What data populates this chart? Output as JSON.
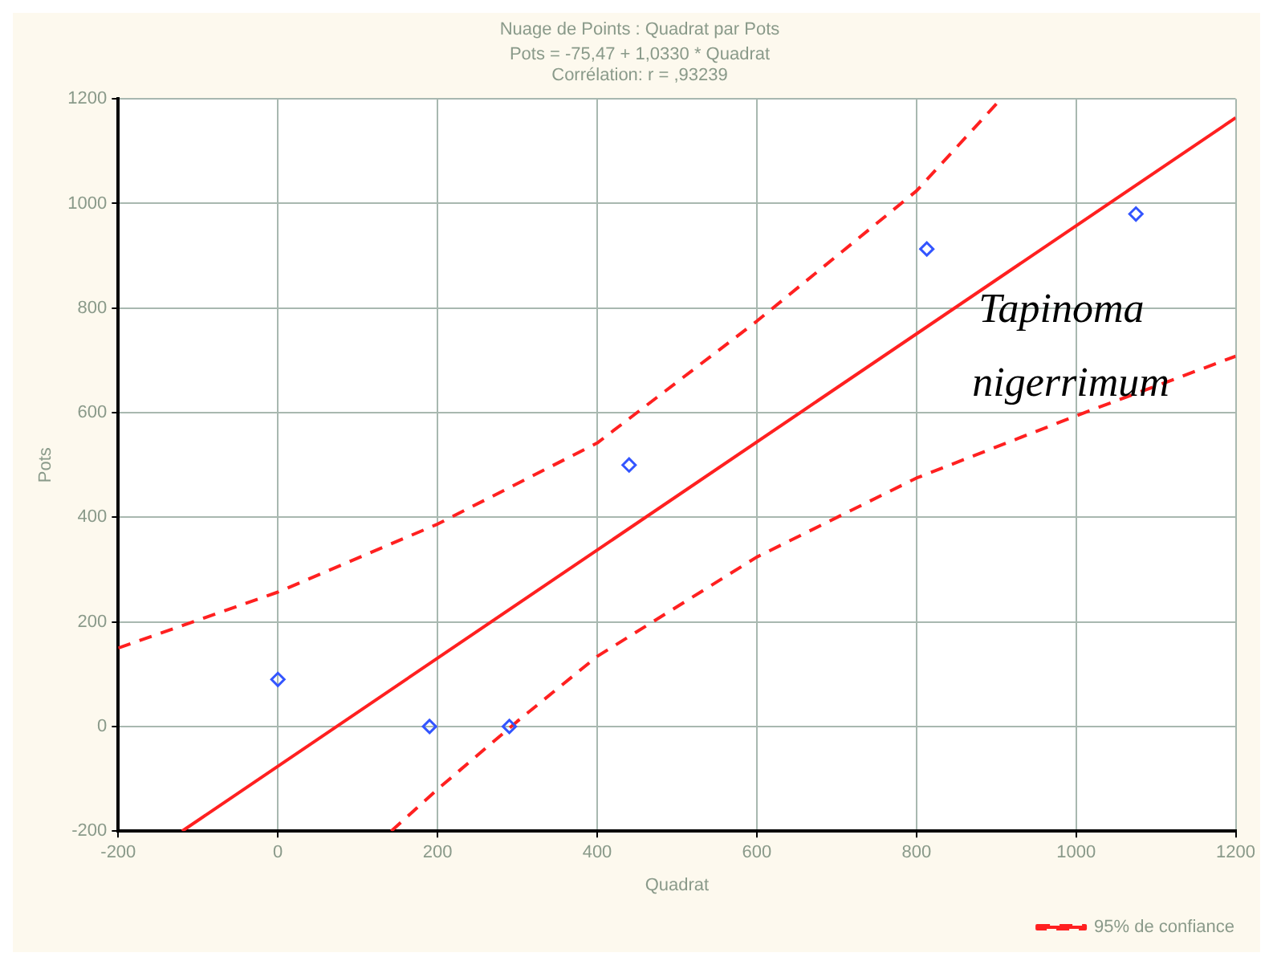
{
  "chart_data": {
    "type": "scatter",
    "title": "Nuage de Points : Quadrat par Pots",
    "subtitle": "Pots = -75,47 + 1,0330 * Quadrat\nCorrélation: r = ,93239",
    "xlabel": "Quadrat",
    "ylabel": "Pots",
    "xlim": [
      -200,
      1200
    ],
    "xticks": [
      -200,
      0,
      200,
      400,
      600,
      800,
      1000,
      1200
    ],
    "ylim": [
      -200,
      1200
    ],
    "yticks": [
      -200,
      0,
      200,
      400,
      600,
      800,
      1000,
      1200
    ],
    "grid": true,
    "legend": "bottom right",
    "annotations": [
      "Tapinoma nigerrimum"
    ],
    "series": [
      {
        "marker": "diamond",
        "color": "#3355ff",
        "x": [
          0,
          190,
          290,
          440,
          813,
          1075
        ],
        "values": [
          90,
          0,
          0,
          500,
          913,
          980
        ]
      },
      {
        "type": "line",
        "marker": "none",
        "color": "#ff2020",
        "line_style": "solid",
        "x": [
          -120,
          1200
        ],
        "values": [
          -200,
          1164
        ]
      },
      {
        "type": "line",
        "marker": "none",
        "name": "95% de confiance",
        "color": "#ff2020",
        "line_style": "dashed",
        "x": [
          -200,
          0,
          200,
          400,
          600,
          800,
          906
        ],
        "values": [
          150,
          257,
          387,
          542,
          775,
          1024,
          1200
        ]
      },
      {
        "type": "line",
        "marker": "none",
        "color": "#ff2020",
        "line_style": "dashed",
        "x": [
          142,
          200,
          300,
          400,
          600,
          800,
          1000,
          1200
        ],
        "values": [
          -200,
          -120,
          10,
          134,
          324,
          475,
          594,
          708
        ]
      }
    ]
  }
}
